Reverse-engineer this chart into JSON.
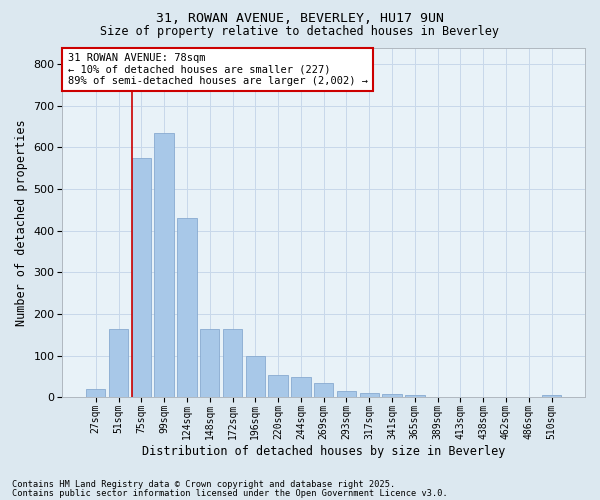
{
  "title1": "31, ROWAN AVENUE, BEVERLEY, HU17 9UN",
  "title2": "Size of property relative to detached houses in Beverley",
  "xlabel": "Distribution of detached houses by size in Beverley",
  "ylabel": "Number of detached properties",
  "categories": [
    "27sqm",
    "51sqm",
    "75sqm",
    "99sqm",
    "124sqm",
    "148sqm",
    "172sqm",
    "196sqm",
    "220sqm",
    "244sqm",
    "269sqm",
    "293sqm",
    "317sqm",
    "341sqm",
    "365sqm",
    "389sqm",
    "413sqm",
    "438sqm",
    "462sqm",
    "486sqm",
    "510sqm"
  ],
  "values": [
    20,
    165,
    575,
    635,
    430,
    165,
    165,
    100,
    55,
    50,
    35,
    15,
    10,
    8,
    5,
    0,
    0,
    0,
    0,
    0,
    5
  ],
  "bar_color": "#a8c8e8",
  "bar_edge_color": "#88aad0",
  "marker_color": "#cc0000",
  "annotation_text": "31 ROWAN AVENUE: 78sqm\n← 10% of detached houses are smaller (227)\n89% of semi-detached houses are larger (2,002) →",
  "annotation_box_color": "#ffffff",
  "annotation_box_edge": "#cc0000",
  "grid_color": "#c8d8ea",
  "bg_color": "#dce8f0",
  "plot_bg": "#e8f2f8",
  "ylim": [
    0,
    840
  ],
  "yticks": [
    0,
    100,
    200,
    300,
    400,
    500,
    600,
    700,
    800
  ],
  "footnote1": "Contains HM Land Registry data © Crown copyright and database right 2025.",
  "footnote2": "Contains public sector information licensed under the Open Government Licence v3.0."
}
